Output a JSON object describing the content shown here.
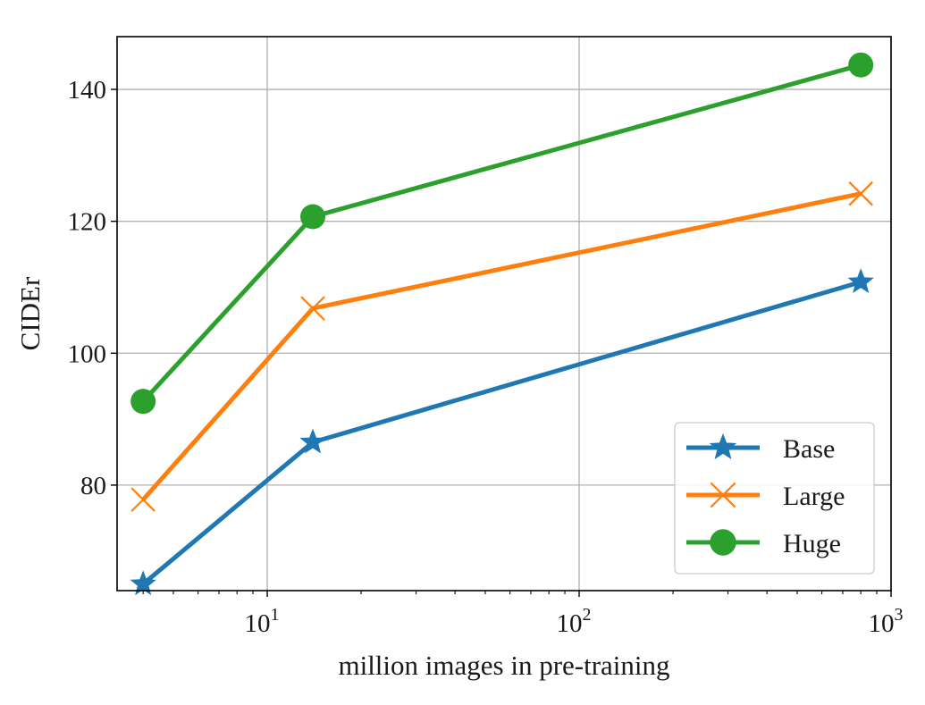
{
  "chart_data": {
    "type": "line",
    "xlabel": "million images in pre-training",
    "ylabel": "CIDEr",
    "x_scale": "log",
    "xlim": [
      3.3,
      1000
    ],
    "ylim": [
      64,
      148
    ],
    "x_ticks": [
      {
        "value": 10,
        "base": "10",
        "exp": "1"
      },
      {
        "value": 100,
        "base": "10",
        "exp": "2"
      },
      {
        "value": 1000,
        "base": "10",
        "exp": "3"
      }
    ],
    "y_ticks": [
      80,
      100,
      120,
      140
    ],
    "grid": true,
    "legend_position": "lower-right",
    "series": [
      {
        "name": "Base",
        "color": "#1f77b4",
        "marker": "star",
        "x": [
          4,
          14,
          800
        ],
        "y": [
          65.0,
          86.5,
          110.8
        ]
      },
      {
        "name": "Large",
        "color": "#ff7f0e",
        "marker": "x",
        "x": [
          4,
          14,
          800
        ],
        "y": [
          77.8,
          106.8,
          124.2
        ]
      },
      {
        "name": "Huge",
        "color": "#2ca02c",
        "marker": "circle",
        "x": [
          4,
          14,
          800
        ],
        "y": [
          92.7,
          120.7,
          143.7
        ]
      }
    ]
  }
}
